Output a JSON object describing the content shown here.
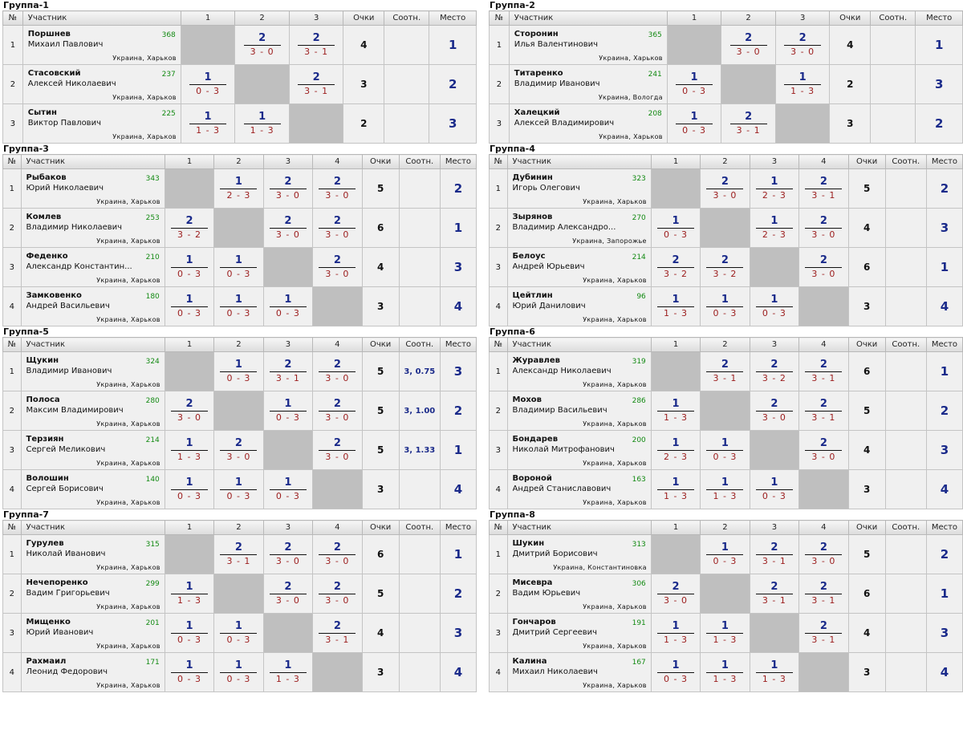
{
  "headers": {
    "num": "№",
    "participant": "Участник",
    "points": "Очки",
    "ratio": "Соотн.",
    "place": "Место"
  },
  "groups": [
    {
      "title": "Группа-1",
      "size": 3,
      "players": [
        {
          "num": "1",
          "surname": "Поршнев",
          "name": "Михаил Павлович",
          "rating": "368",
          "city": "Украина, Харьков",
          "results": [
            null,
            [
              "2",
              "3 - 0"
            ],
            [
              "2",
              "3 - 1"
            ]
          ],
          "points": "4",
          "ratio": "",
          "place": "1"
        },
        {
          "num": "2",
          "surname": "Стасовский",
          "name": "Алексей Николаевич",
          "rating": "237",
          "city": "Украина, Харьков",
          "results": [
            [
              "1",
              "0 - 3"
            ],
            null,
            [
              "2",
              "3 - 1"
            ]
          ],
          "points": "3",
          "ratio": "",
          "place": "2"
        },
        {
          "num": "3",
          "surname": "Сытин",
          "name": "Виктор Павлович",
          "rating": "225",
          "city": "Украина, Харьков",
          "results": [
            [
              "1",
              "1 - 3"
            ],
            [
              "1",
              "1 - 3"
            ],
            null
          ],
          "points": "2",
          "ratio": "",
          "place": "3"
        }
      ]
    },
    {
      "title": "Группа-2",
      "size": 3,
      "players": [
        {
          "num": "1",
          "surname": "Сторонин",
          "name": "Илья Валентинович",
          "rating": "365",
          "city": "Украина, Харьков",
          "results": [
            null,
            [
              "2",
              "3 - 0"
            ],
            [
              "2",
              "3 - 0"
            ]
          ],
          "points": "4",
          "ratio": "",
          "place": "1"
        },
        {
          "num": "2",
          "surname": "Титаренко",
          "name": "Владимир Иванович",
          "rating": "241",
          "city": "Украина, Вологда",
          "results": [
            [
              "1",
              "0 - 3"
            ],
            null,
            [
              "1",
              "1 - 3"
            ]
          ],
          "points": "2",
          "ratio": "",
          "place": "3"
        },
        {
          "num": "3",
          "surname": "Халецкий",
          "name": "Алексей Владимирович",
          "rating": "208",
          "city": "Украина, Харьков",
          "results": [
            [
              "1",
              "0 - 3"
            ],
            [
              "2",
              "3 - 1"
            ],
            null
          ],
          "points": "3",
          "ratio": "",
          "place": "2"
        }
      ]
    },
    {
      "title": "Группа-3",
      "size": 4,
      "players": [
        {
          "num": "1",
          "surname": "Рыбаков",
          "name": "Юрий Николаевич",
          "rating": "343",
          "city": "Украина, Харьков",
          "results": [
            null,
            [
              "1",
              "2 - 3"
            ],
            [
              "2",
              "3 - 0"
            ],
            [
              "2",
              "3 - 0"
            ]
          ],
          "points": "5",
          "ratio": "",
          "place": "2"
        },
        {
          "num": "2",
          "surname": "Комлев",
          "name": "Владимир Николаевич",
          "rating": "253",
          "city": "Украина, Харьков",
          "results": [
            [
              "2",
              "3 - 2"
            ],
            null,
            [
              "2",
              "3 - 0"
            ],
            [
              "2",
              "3 - 0"
            ]
          ],
          "points": "6",
          "ratio": "",
          "place": "1"
        },
        {
          "num": "3",
          "surname": "Феденко",
          "name": "Александр Константин...",
          "rating": "210",
          "city": "Украина, Харьков",
          "results": [
            [
              "1",
              "0 - 3"
            ],
            [
              "1",
              "0 - 3"
            ],
            null,
            [
              "2",
              "3 - 0"
            ]
          ],
          "points": "4",
          "ratio": "",
          "place": "3"
        },
        {
          "num": "4",
          "surname": "Замковенко",
          "name": "Андрей Васильевич",
          "rating": "180",
          "city": "Украина, Харьков",
          "results": [
            [
              "1",
              "0 - 3"
            ],
            [
              "1",
              "0 - 3"
            ],
            [
              "1",
              "0 - 3"
            ],
            null
          ],
          "points": "3",
          "ratio": "",
          "place": "4"
        }
      ]
    },
    {
      "title": "Группа-4",
      "size": 4,
      "players": [
        {
          "num": "1",
          "surname": "Дубинин",
          "name": "Игорь Олегович",
          "rating": "323",
          "city": "Украина, Харьков",
          "results": [
            null,
            [
              "2",
              "3 - 0"
            ],
            [
              "1",
              "2 - 3"
            ],
            [
              "2",
              "3 - 1"
            ]
          ],
          "points": "5",
          "ratio": "",
          "place": "2"
        },
        {
          "num": "2",
          "surname": "Зырянов",
          "name": "Владимир Александро...",
          "rating": "270",
          "city": "Украина, Запорожье",
          "results": [
            [
              "1",
              "0 - 3"
            ],
            null,
            [
              "1",
              "2 - 3"
            ],
            [
              "2",
              "3 - 0"
            ]
          ],
          "points": "4",
          "ratio": "",
          "place": "3"
        },
        {
          "num": "3",
          "surname": "Белоус",
          "name": "Андрей Юрьевич",
          "rating": "214",
          "city": "Украина, Харьков",
          "results": [
            [
              "2",
              "3 - 2"
            ],
            [
              "2",
              "3 - 2"
            ],
            null,
            [
              "2",
              "3 - 0"
            ]
          ],
          "points": "6",
          "ratio": "",
          "place": "1"
        },
        {
          "num": "4",
          "surname": "Цейтлин",
          "name": "Юрий Данилович",
          "rating": "96",
          "city": "Украина, Харьков",
          "results": [
            [
              "1",
              "1 - 3"
            ],
            [
              "1",
              "0 - 3"
            ],
            [
              "1",
              "0 - 3"
            ],
            null
          ],
          "points": "3",
          "ratio": "",
          "place": "4"
        }
      ]
    },
    {
      "title": "Группа-5",
      "size": 4,
      "players": [
        {
          "num": "1",
          "surname": "Щукин",
          "name": "Владимир Иванович",
          "rating": "324",
          "city": "Украина, Харьков",
          "results": [
            null,
            [
              "1",
              "0 - 3"
            ],
            [
              "2",
              "3 - 1"
            ],
            [
              "2",
              "3 - 0"
            ]
          ],
          "points": "5",
          "ratio": "3, 0.75",
          "place": "3"
        },
        {
          "num": "2",
          "surname": "Полоса",
          "name": "Максим Владимирович",
          "rating": "280",
          "city": "Украина, Харьков",
          "results": [
            [
              "2",
              "3 - 0"
            ],
            null,
            [
              "1",
              "0 - 3"
            ],
            [
              "2",
              "3 - 0"
            ]
          ],
          "points": "5",
          "ratio": "3, 1.00",
          "place": "2"
        },
        {
          "num": "3",
          "surname": "Терзиян",
          "name": "Сергей Меликович",
          "rating": "214",
          "city": "Украина, Харьков",
          "results": [
            [
              "1",
              "1 - 3"
            ],
            [
              "2",
              "3 - 0"
            ],
            null,
            [
              "2",
              "3 - 0"
            ]
          ],
          "points": "5",
          "ratio": "3, 1.33",
          "place": "1"
        },
        {
          "num": "4",
          "surname": "Волошин",
          "name": "Сергей Борисович",
          "rating": "140",
          "city": "Украина, Харьков",
          "results": [
            [
              "1",
              "0 - 3"
            ],
            [
              "1",
              "0 - 3"
            ],
            [
              "1",
              "0 - 3"
            ],
            null
          ],
          "points": "3",
          "ratio": "",
          "place": "4"
        }
      ]
    },
    {
      "title": "Группа-6",
      "size": 4,
      "players": [
        {
          "num": "1",
          "surname": "Журавлев",
          "name": "Александр Николаевич",
          "rating": "319",
          "city": "Украина, Харьков",
          "results": [
            null,
            [
              "2",
              "3 - 1"
            ],
            [
              "2",
              "3 - 2"
            ],
            [
              "2",
              "3 - 1"
            ]
          ],
          "points": "6",
          "ratio": "",
          "place": "1"
        },
        {
          "num": "2",
          "surname": "Мохов",
          "name": "Владимир Васильевич",
          "rating": "286",
          "city": "Украина, Харьков",
          "results": [
            [
              "1",
              "1 - 3"
            ],
            null,
            [
              "2",
              "3 - 0"
            ],
            [
              "2",
              "3 - 1"
            ]
          ],
          "points": "5",
          "ratio": "",
          "place": "2"
        },
        {
          "num": "3",
          "surname": "Бондарев",
          "name": "Николай Митрофанович",
          "rating": "200",
          "city": "Украина, Харьков",
          "results": [
            [
              "1",
              "2 - 3"
            ],
            [
              "1",
              "0 - 3"
            ],
            null,
            [
              "2",
              "3 - 0"
            ]
          ],
          "points": "4",
          "ratio": "",
          "place": "3"
        },
        {
          "num": "4",
          "surname": "Вороной",
          "name": "Андрей Станиславович",
          "rating": "163",
          "city": "Украина, Харьков",
          "results": [
            [
              "1",
              "1 - 3"
            ],
            [
              "1",
              "1 - 3"
            ],
            [
              "1",
              "0 - 3"
            ],
            null
          ],
          "points": "3",
          "ratio": "",
          "place": "4"
        }
      ]
    },
    {
      "title": "Группа-7",
      "size": 4,
      "players": [
        {
          "num": "1",
          "surname": "Гурулев",
          "name": "Николай Иванович",
          "rating": "315",
          "city": "Украина, Харьков",
          "results": [
            null,
            [
              "2",
              "3 - 1"
            ],
            [
              "2",
              "3 - 0"
            ],
            [
              "2",
              "3 - 0"
            ]
          ],
          "points": "6",
          "ratio": "",
          "place": "1"
        },
        {
          "num": "2",
          "surname": "Нечепоренко",
          "name": "Вадим Григорьевич",
          "rating": "299",
          "city": "Украина, Харьков",
          "results": [
            [
              "1",
              "1 - 3"
            ],
            null,
            [
              "2",
              "3 - 0"
            ],
            [
              "2",
              "3 - 0"
            ]
          ],
          "points": "5",
          "ratio": "",
          "place": "2"
        },
        {
          "num": "3",
          "surname": "Мищенко",
          "name": "Юрий Иванович",
          "rating": "201",
          "city": "Украина, Харьков",
          "results": [
            [
              "1",
              "0 - 3"
            ],
            [
              "1",
              "0 - 3"
            ],
            null,
            [
              "2",
              "3 - 1"
            ]
          ],
          "points": "4",
          "ratio": "",
          "place": "3"
        },
        {
          "num": "4",
          "surname": "Рахмаил",
          "name": "Леонид Федорович",
          "rating": "171",
          "city": "Украина, Харьков",
          "results": [
            [
              "1",
              "0 - 3"
            ],
            [
              "1",
              "0 - 3"
            ],
            [
              "1",
              "1 - 3"
            ],
            null
          ],
          "points": "3",
          "ratio": "",
          "place": "4"
        }
      ]
    },
    {
      "title": "Группа-8",
      "size": 4,
      "players": [
        {
          "num": "1",
          "surname": "Шукин",
          "name": "Дмитрий Борисович",
          "rating": "313",
          "city": "Украина, Константиновка",
          "results": [
            null,
            [
              "1",
              "0 - 3"
            ],
            [
              "2",
              "3 - 1"
            ],
            [
              "2",
              "3 - 0"
            ]
          ],
          "points": "5",
          "ratio": "",
          "place": "2"
        },
        {
          "num": "2",
          "surname": "Мисевра",
          "name": "Вадим Юрьевич",
          "rating": "306",
          "city": "Украина, Харьков",
          "results": [
            [
              "2",
              "3 - 0"
            ],
            null,
            [
              "2",
              "3 - 1"
            ],
            [
              "2",
              "3 - 1"
            ]
          ],
          "points": "6",
          "ratio": "",
          "place": "1"
        },
        {
          "num": "3",
          "surname": "Гончаров",
          "name": "Дмитрий Сергеевич",
          "rating": "191",
          "city": "Украина, Харьков",
          "results": [
            [
              "1",
              "1 - 3"
            ],
            [
              "1",
              "1 - 3"
            ],
            null,
            [
              "2",
              "3 - 1"
            ]
          ],
          "points": "4",
          "ratio": "",
          "place": "3"
        },
        {
          "num": "4",
          "surname": "Калина",
          "name": "Михаил Николаевич",
          "rating": "167",
          "city": "Украина, Харьков",
          "results": [
            [
              "1",
              "0 - 3"
            ],
            [
              "1",
              "1 - 3"
            ],
            [
              "1",
              "1 - 3"
            ],
            null
          ],
          "points": "3",
          "ratio": "",
          "place": "4"
        }
      ]
    }
  ]
}
